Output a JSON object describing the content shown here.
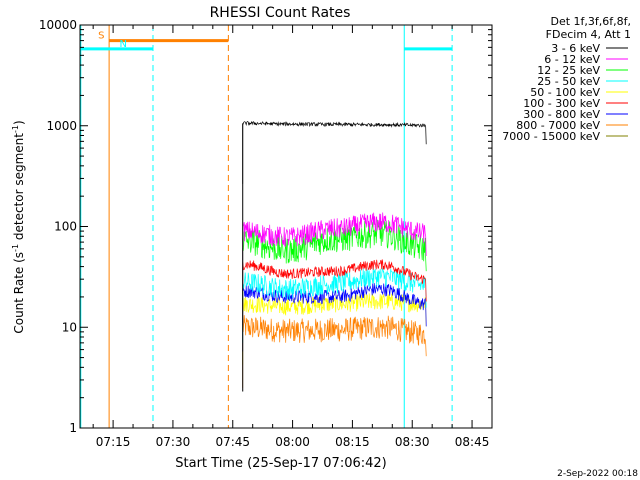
{
  "chart_data": {
    "type": "line",
    "title": "RHESSI Count Rates",
    "xlabel": "Start Time (25-Sep-17 07:06:42)",
    "ylabel_main": "Count Rate (s",
    "ylabel_sup1": "-1",
    "ylabel_mid": " detector segment",
    "ylabel_sup2": "-1",
    "ylabel_end": ")",
    "y_scale": "log",
    "ylim": [
      1,
      10000
    ],
    "xlim_minutes": [
      426.7,
      530
    ],
    "x_ticks": [
      {
        "minute": 435,
        "label": "07:15"
      },
      {
        "minute": 450,
        "label": "07:30"
      },
      {
        "minute": 465,
        "label": "07:45"
      },
      {
        "minute": 480,
        "label": "08:00"
      },
      {
        "minute": 495,
        "label": "08:15"
      },
      {
        "minute": 510,
        "label": "08:30"
      },
      {
        "minute": 525,
        "label": "08:45"
      }
    ],
    "y_ticks": [
      {
        "value": 1,
        "label": "1"
      },
      {
        "value": 10,
        "label": "10"
      },
      {
        "value": 100,
        "label": "100"
      },
      {
        "value": 1000,
        "label": "1000"
      },
      {
        "value": 10000,
        "label": "10000"
      }
    ],
    "legend_title": [
      "Det 1f,3f,6f,8f,",
      "FDecim 4, Att 1"
    ],
    "legend_position": "top-right, outside plot",
    "data_start_minute": 467.5,
    "data_end_minute": 513.5,
    "series": [
      {
        "name": "3 - 6 keV",
        "color": "#000000",
        "level": [
          1060,
          1040,
          1030,
          1025,
          1010
        ],
        "noise": 0.02
      },
      {
        "name": "6 - 12 keV",
        "color": "#ff00ff",
        "level": [
          90,
          78,
          95,
          110,
          85
        ],
        "noise": 0.12
      },
      {
        "name": "12 - 25 keV",
        "color": "#00ff00",
        "level": [
          72,
          58,
          75,
          85,
          60
        ],
        "noise": 0.16
      },
      {
        "name": "25 - 50 keV",
        "color": "#00ffff",
        "level": [
          28,
          24,
          27,
          32,
          26
        ],
        "noise": 0.12
      },
      {
        "name": "50 - 100 keV",
        "color": "#ffff00",
        "level": [
          17,
          16,
          17,
          18,
          17
        ],
        "noise": 0.1
      },
      {
        "name": "100 - 300 keV",
        "color": "#ff0000",
        "level": [
          42,
          34,
          36,
          42,
          30
        ],
        "noise": 0.06
      },
      {
        "name": "300 - 800 keV",
        "color": "#0000ff",
        "level": [
          23,
          20,
          20,
          24,
          17
        ],
        "noise": 0.08
      },
      {
        "name": "800 - 7000 keV",
        "color": "#ff8000",
        "level": [
          10,
          9.2,
          9.4,
          10,
          8.6
        ],
        "noise": 0.14
      },
      {
        "name": "7000 - 15000 keV",
        "color": "#808000",
        "level": [
          null,
          null,
          null,
          null,
          null
        ],
        "noise": 0
      }
    ],
    "status_bars": [
      {
        "label": "",
        "color": "#00ffff",
        "start_minute": 426.7,
        "end_minute": 434.6,
        "value": 5800
      },
      {
        "label": "S",
        "color": "#ff8000",
        "start_minute": 434.0,
        "end_minute": 463.9,
        "value": 7000
      },
      {
        "label": "N",
        "color": "#00ffff",
        "start_minute": 434.6,
        "end_minute": 445.0,
        "value": 5800
      },
      {
        "label": "",
        "color": "#00ffff",
        "start_minute": 508.0,
        "end_minute": 520.0,
        "value": 5800
      }
    ],
    "vertical_lines": [
      {
        "minute": 426.9,
        "color": "#00ffff",
        "style": "solid"
      },
      {
        "minute": 434.0,
        "color": "#ff8000",
        "style": "solid"
      },
      {
        "minute": 445.0,
        "color": "#00ffff",
        "style": "dashed"
      },
      {
        "minute": 463.9,
        "color": "#ff8000",
        "style": "dashed"
      },
      {
        "minute": 508.0,
        "color": "#00ffff",
        "style": "solid"
      },
      {
        "minute": 520.0,
        "color": "#00ffff",
        "style": "dashed"
      }
    ]
  },
  "footer_timestamp": "2-Sep-2022 00:18"
}
